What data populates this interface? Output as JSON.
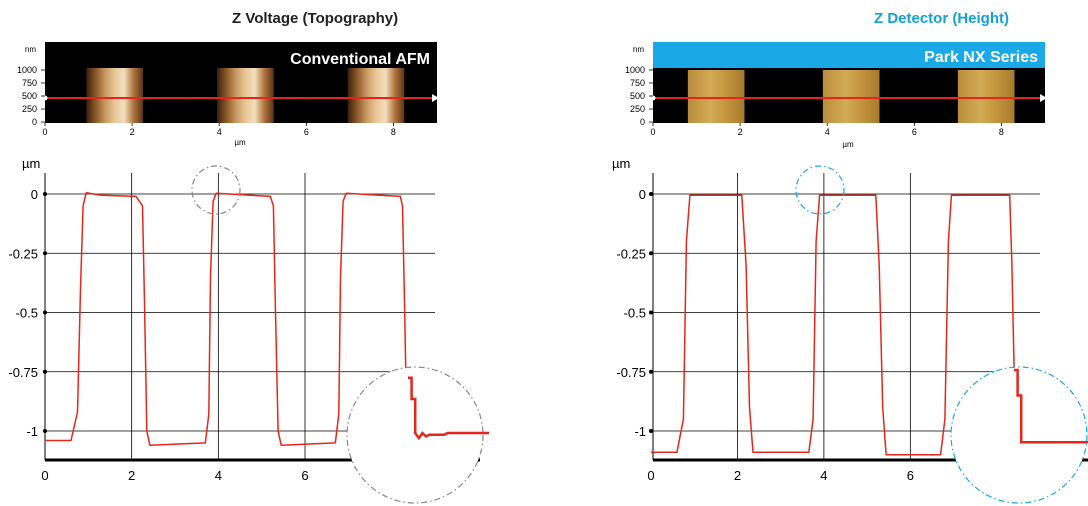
{
  "colors": {
    "profile": "#e8251b",
    "left_accent": "#222222",
    "right_accent": "#12a0dc",
    "right_banner": "#1aa8e6"
  },
  "chart_data": [
    {
      "type": "line",
      "title": "Z Voltage (Topography)",
      "image": {
        "banner": "Conventional AFM",
        "unit_label": "nm",
        "y_ticks": [
          "1000",
          "750",
          "500",
          "250",
          "0"
        ],
        "x_ticks": [
          "0",
          "2",
          "4",
          "6",
          "8"
        ],
        "xlabel": "µm",
        "pads_um": [
          [
            0.95,
            2.25
          ],
          [
            3.95,
            5.25
          ],
          [
            6.95,
            8.25
          ]
        ]
      },
      "ylabel": "µm",
      "xlim": [
        0,
        9
      ],
      "ylim": [
        -1.13,
        0.05
      ],
      "x_ticks": [
        "0",
        "2",
        "4",
        "6"
      ],
      "y_ticks": [
        "0",
        "-0.25",
        "-0.5",
        "-0.75",
        "-1"
      ],
      "y_tick_values": [
        0,
        -0.25,
        -0.5,
        -0.75,
        -1
      ],
      "grid_x": [
        2,
        4,
        6
      ],
      "grid_y": [
        0,
        -0.25,
        -0.5,
        -0.75,
        -1
      ],
      "series": [
        {
          "x": [
            0,
            0.6,
            0.75,
            0.82,
            0.88,
            0.95,
            1.3,
            2.1,
            2.25,
            2.3,
            2.35,
            2.42,
            3.7,
            3.78,
            3.82,
            3.88,
            3.95,
            5.2,
            5.27,
            5.32,
            5.38,
            5.45,
            6.7,
            6.78,
            6.82,
            6.88,
            6.95,
            8.2,
            8.25,
            8.3,
            8.35,
            8.4,
            9.0
          ],
          "y": [
            -1.04,
            -1.04,
            -0.92,
            -0.4,
            -0.05,
            0.005,
            -0.005,
            -0.01,
            -0.05,
            -0.5,
            -1.0,
            -1.06,
            -1.05,
            -0.93,
            -0.35,
            -0.03,
            0.003,
            -0.01,
            -0.05,
            -0.5,
            -1.0,
            -1.06,
            -1.05,
            -0.93,
            -0.35,
            -0.03,
            0.003,
            -0.01,
            -0.05,
            -0.5,
            -1.0,
            -1.05,
            -1.05
          ]
        }
      ],
      "zoom_circle": {
        "color": "#888888",
        "style": "dashdot"
      },
      "zoom_detail": [
        [
          0,
          -0.35
        ],
        [
          0.02,
          -0.35
        ],
        [
          0.02,
          -0.6
        ],
        [
          0.04,
          -0.6
        ],
        [
          0.04,
          -1.0
        ],
        [
          0.06,
          -1.06
        ],
        [
          0.08,
          -1.0
        ],
        [
          0.1,
          -1.04
        ],
        [
          0.12,
          -1.02
        ],
        [
          0.2,
          -1.02
        ],
        [
          0.22,
          -1.0
        ],
        [
          0.45,
          -1.0
        ]
      ]
    },
    {
      "type": "line",
      "title": "Z Detector (Height)",
      "image": {
        "banner": "Park NX Series",
        "unit_label": "nm",
        "y_ticks": [
          "1000",
          "750",
          "500",
          "250",
          "0"
        ],
        "x_ticks": [
          "0",
          "2",
          "4",
          "6",
          "8"
        ],
        "xlabel": "µm",
        "pads_um": [
          [
            0.8,
            2.1
          ],
          [
            3.9,
            5.2
          ],
          [
            7.0,
            8.3
          ]
        ]
      },
      "ylabel": "µm",
      "xlim": [
        0,
        9
      ],
      "ylim": [
        -1.13,
        0.05
      ],
      "x_ticks": [
        "0",
        "2",
        "4",
        "6"
      ],
      "y_ticks": [
        "0",
        "-0.25",
        "-0.5",
        "-0.75",
        "-1"
      ],
      "y_tick_values": [
        0,
        -0.25,
        -0.5,
        -0.75,
        -1
      ],
      "grid_x": [
        2,
        4,
        6
      ],
      "grid_y": [
        0,
        -0.25,
        -0.5,
        -0.75,
        -1
      ],
      "series": [
        {
          "x": [
            0,
            0.6,
            0.75,
            0.82,
            0.9,
            2.1,
            2.2,
            2.28,
            2.36,
            3.65,
            3.75,
            3.82,
            3.9,
            5.2,
            5.28,
            5.36,
            5.44,
            6.7,
            6.8,
            6.88,
            6.95,
            8.3,
            8.35,
            8.42,
            8.48,
            9.0
          ],
          "y": [
            -1.09,
            -1.09,
            -0.95,
            -0.2,
            -0.005,
            -0.005,
            -0.3,
            -0.9,
            -1.09,
            -1.09,
            -0.95,
            -0.2,
            -0.005,
            -0.005,
            -0.3,
            -0.9,
            -1.1,
            -1.1,
            -0.95,
            -0.2,
            -0.005,
            -0.005,
            -0.3,
            -0.9,
            -1.1,
            -1.1
          ]
        }
      ],
      "zoom_circle": {
        "color": "#1aa8e6",
        "style": "dashdot"
      },
      "zoom_detail": [
        [
          0,
          -0.2
        ],
        [
          0.02,
          -0.2
        ],
        [
          0.02,
          -0.5
        ],
        [
          0.04,
          -0.5
        ],
        [
          0.04,
          -1.05
        ],
        [
          0.45,
          -1.05
        ]
      ]
    }
  ]
}
